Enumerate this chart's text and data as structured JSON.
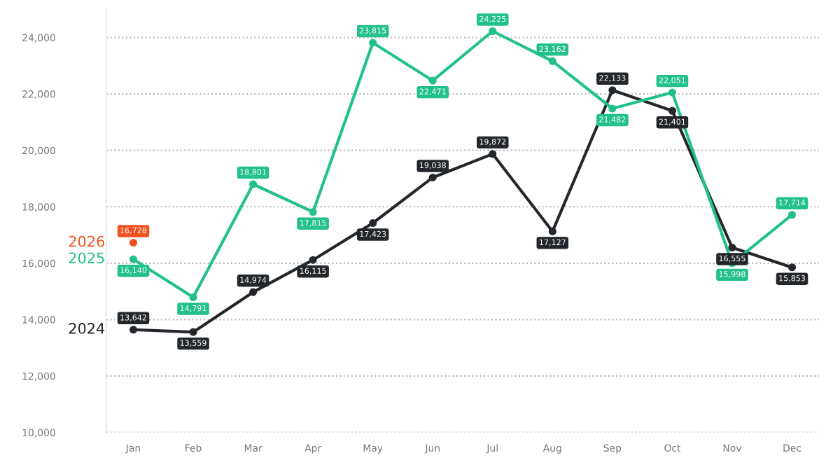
{
  "chart_data": {
    "type": "line",
    "categories": [
      "Jan",
      "Feb",
      "Mar",
      "Apr",
      "May",
      "Jun",
      "Jul",
      "Aug",
      "Sep",
      "Oct",
      "Nov",
      "Dec"
    ],
    "series": [
      {
        "name": "2024",
        "color": "#23272b",
        "values": [
          13642,
          13559,
          14974,
          16115,
          17423,
          19038,
          19872,
          17127,
          22133,
          21401,
          16555,
          15853
        ],
        "value_labels": [
          "13,642",
          "13,559",
          "14,974",
          "16,115",
          "17,423",
          "19,038",
          "19,872",
          "17,127",
          "22,133",
          "21,401",
          "16,555",
          "15,853"
        ]
      },
      {
        "name": "2025",
        "color": "#22c08a",
        "values": [
          16140,
          14791,
          18801,
          17815,
          23815,
          22471,
          24225,
          23162,
          21482,
          22051,
          15998,
          17714
        ],
        "value_labels": [
          "16,140",
          "14,791",
          "18,801",
          "17,815",
          "23,815",
          "22,471",
          "24,225",
          "23,162",
          "21,482",
          "22,051",
          "15,998",
          "17,714"
        ]
      },
      {
        "name": "2026",
        "color": "#f0521e",
        "values": [
          16728,
          null,
          null,
          null,
          null,
          null,
          null,
          null,
          null,
          null,
          null,
          null
        ],
        "value_labels": [
          "16,728",
          null,
          null,
          null,
          null,
          null,
          null,
          null,
          null,
          null,
          null,
          null
        ]
      }
    ],
    "ylim": [
      10000,
      25000
    ],
    "yticks": [
      {
        "value": 10000,
        "label": "10,000"
      },
      {
        "value": 12000,
        "label": "12,000"
      },
      {
        "value": 14000,
        "label": "14,000"
      },
      {
        "value": 16000,
        "label": "16,000"
      },
      {
        "value": 18000,
        "label": "18,000"
      },
      {
        "value": 20000,
        "label": "20,000"
      },
      {
        "value": 22000,
        "label": "22,000"
      },
      {
        "value": 24000,
        "label": "24,000"
      }
    ],
    "grid": "y",
    "marker": "circle",
    "line_style": "solid",
    "legend": false
  }
}
